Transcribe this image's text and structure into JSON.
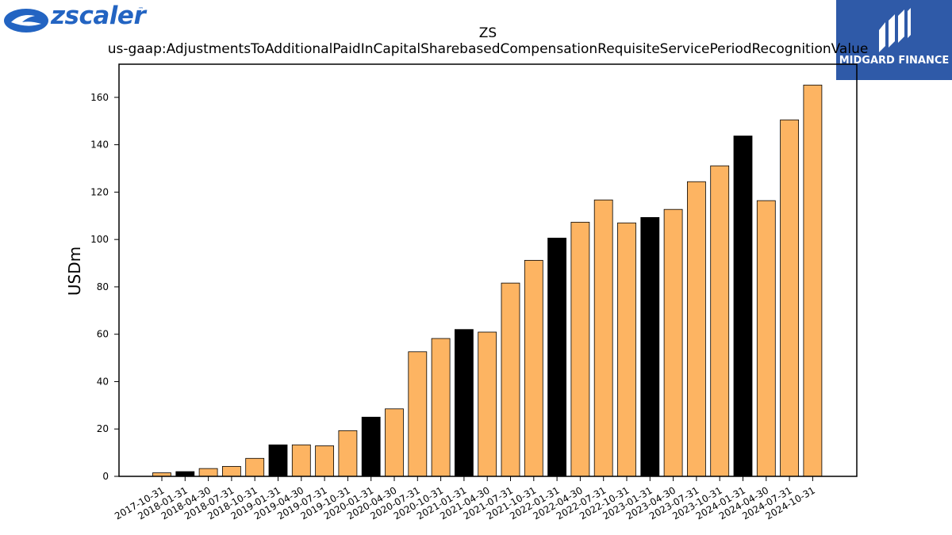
{
  "logos": {
    "left_brand": "zscaler",
    "left_brand_mark": "™",
    "right_brand": "MIDGARD FINANCE",
    "colors": {
      "zscaler_blue": "#2364c2",
      "midgard_bg": "#2f5aa8"
    }
  },
  "chart_data": {
    "type": "bar",
    "title": "ZS",
    "subtitle": "us-gaap:AdjustmentsToAdditionalPaidInCapitalSharebasedCompensationRequisiteServicePeriodRecognitionValue",
    "xlabel": "",
    "ylabel": "USDm",
    "ylim": [
      0,
      174
    ],
    "yticks": [
      0,
      20,
      40,
      60,
      80,
      100,
      120,
      140,
      160
    ],
    "grid": false,
    "colors": {
      "default": "#fdb462",
      "highlight": "#000000"
    },
    "categories": [
      "2017-10-31",
      "2018-01-31",
      "2018-04-30",
      "2018-07-31",
      "2018-10-31",
      "2019-01-31",
      "2019-04-30",
      "2019-07-31",
      "2019-10-31",
      "2020-01-31",
      "2020-04-30",
      "2020-07-31",
      "2020-10-31",
      "2021-01-31",
      "2021-04-30",
      "2021-07-31",
      "2021-10-31",
      "2022-01-31",
      "2022-04-30",
      "2022-07-31",
      "2022-10-31",
      "2023-01-31",
      "2023-04-30",
      "2023-07-31",
      "2023-10-31",
      "2024-01-31",
      "2024-04-30",
      "2024-07-31",
      "2024-10-31"
    ],
    "values": [
      1.5,
      2.0,
      3.3,
      4.2,
      7.6,
      13.3,
      13.3,
      12.9,
      19.3,
      25.0,
      28.5,
      52.6,
      58.2,
      62.0,
      60.9,
      81.6,
      91.2,
      100.6,
      107.3,
      116.7,
      107.0,
      109.3,
      112.7,
      124.4,
      131.1,
      143.7,
      116.4,
      150.5,
      165.2
    ],
    "highlight": [
      false,
      true,
      false,
      false,
      false,
      true,
      false,
      false,
      false,
      true,
      false,
      false,
      false,
      true,
      false,
      false,
      false,
      true,
      false,
      false,
      false,
      true,
      false,
      false,
      false,
      true,
      false,
      false,
      false
    ]
  }
}
